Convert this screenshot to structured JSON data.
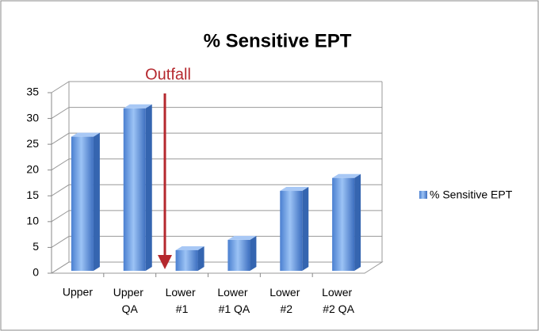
{
  "chart_data": {
    "type": "bar",
    "title": "% Sensitive EPT",
    "categories": [
      "Upper",
      "Upper QA",
      "Lower #1",
      "Lower #1 QA",
      "Lower #2",
      "Lower #2 QA"
    ],
    "series": [
      {
        "name": "% Sensitive EPT",
        "color": "#5b8fd9",
        "values": [
          26,
          31.5,
          4,
          6,
          15.5,
          18
        ]
      }
    ],
    "ylim": [
      0,
      35
    ],
    "yticks": [
      0,
      5,
      10,
      15,
      20,
      25,
      30,
      35
    ],
    "grid": true,
    "legend": "right",
    "annotation": "Outfall"
  }
}
